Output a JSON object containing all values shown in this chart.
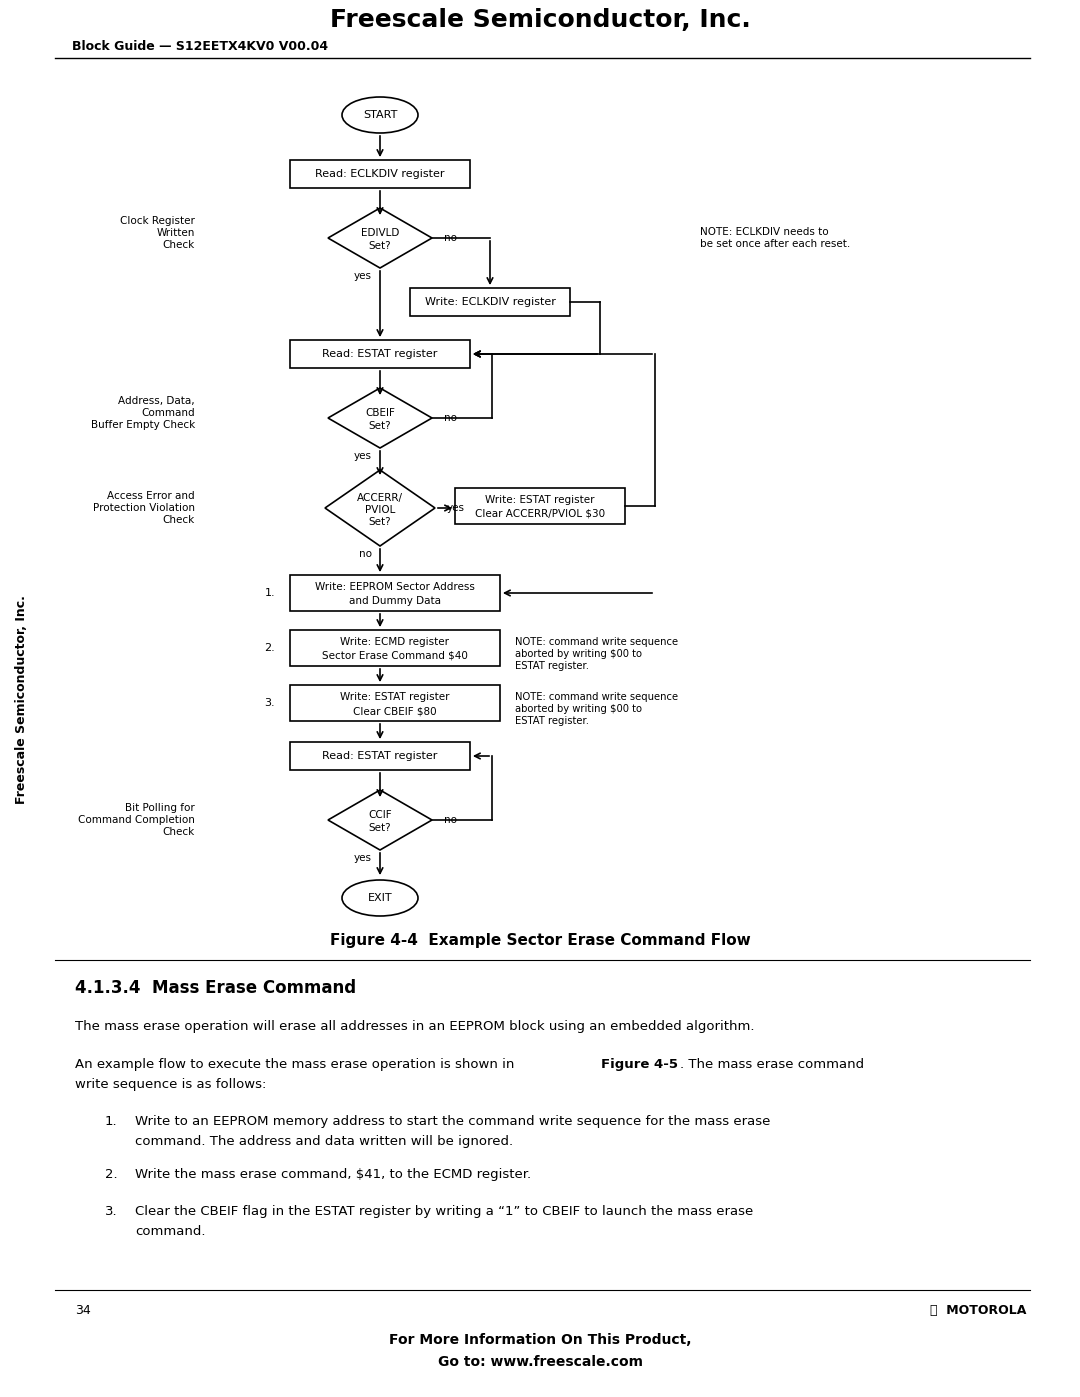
{
  "page_title": "Freescale Semiconductor, Inc.",
  "page_subtitle": "Block Guide — S12EETX4KV0 V00.04",
  "page_number": "34",
  "figure_caption": "Figure 4-4  Example Sector Erase Command Flow",
  "section_title": "4.1.3.4  Mass Erase Command",
  "body_text1": "The mass erase operation will erase all addresses in an EEPROM block using an embedded algorithm.",
  "body_text2": "An example flow to execute the mass erase operation is shown in Figure 4-5. The mass erase command\nwrite sequence is as follows:",
  "bullet1": "Write to an EEPROM memory address to start the command write sequence for the mass erase\ncommand. The address and data written will be ignored.",
  "bullet2": "Write the mass erase command, $41, to the ECMD register.",
  "bullet3": "Clear the CBEIF flag in the ESTAT register by writing a “1” to CBEIF to launch the mass erase\ncommand.",
  "footer_text1": "For More Information On This Product,",
  "footer_text2": "Go to: www.freescale.com",
  "sidebar_text": "Freescale Semiconductor, Inc.",
  "bg_color": "#ffffff",
  "text_color": "#000000",
  "box_fill": "#ffffff",
  "box_edge": "#000000"
}
